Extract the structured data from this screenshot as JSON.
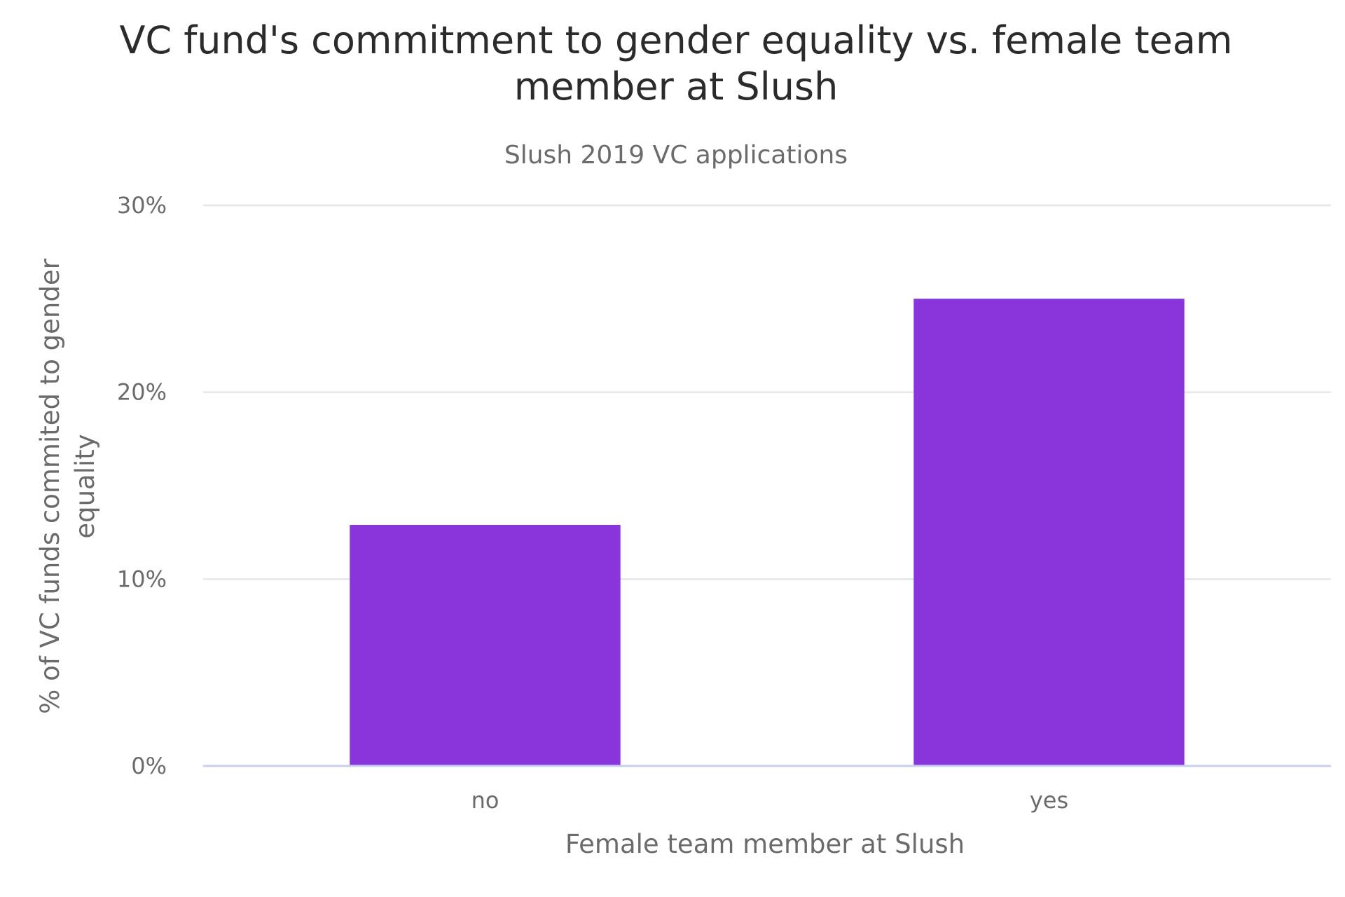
{
  "chart_data": {
    "type": "bar",
    "title_lines": [
      "VC fund's commitment to gender equality vs. female team",
      "member at Slush"
    ],
    "subtitle": "Slush 2019 VC applications",
    "xlabel": "Female team member at Slush",
    "ylabel_lines": [
      "% of VC funds commited to gender",
      "equality"
    ],
    "categories": [
      "no",
      "yes"
    ],
    "values": [
      12.9,
      25.0
    ],
    "ylim": [
      0,
      30
    ],
    "yticks": [
      0,
      10,
      20,
      30
    ],
    "ytick_labels": [
      "0%",
      "10%",
      "20%",
      "30%"
    ],
    "grid": true,
    "bar_color": "#8a35dc"
  }
}
